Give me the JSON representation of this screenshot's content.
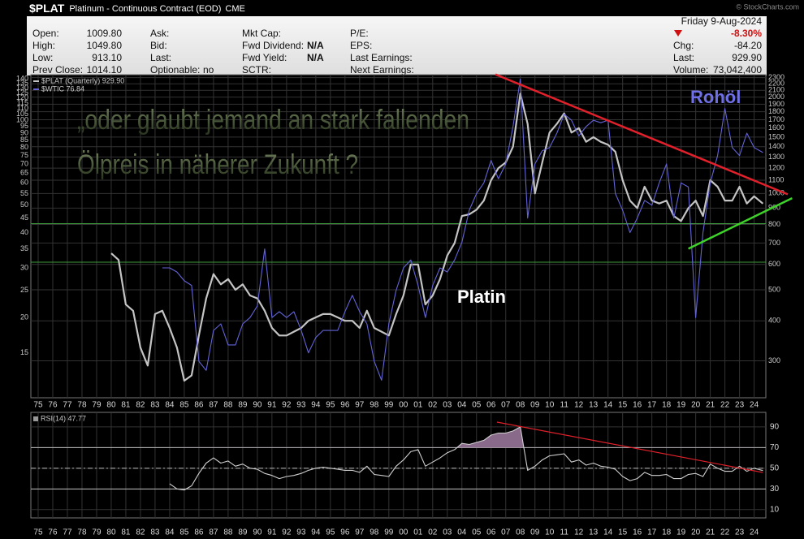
{
  "header": {
    "symbol": "$PLAT",
    "description": "Platinum - Continuous Contract (EOD)",
    "exchange": "CME",
    "watermark": "© StockCharts.com",
    "date": "Friday  9-Aug-2024",
    "change_pct": "-8.30%",
    "columns": [
      [
        {
          "label": "Open:",
          "value": "1009.80"
        },
        {
          "label": "High:",
          "value": "1049.80"
        },
        {
          "label": "Low:",
          "value": "913.10"
        },
        {
          "label": "Prev Close:",
          "value": "1014.10"
        }
      ],
      [
        {
          "label": "Ask:"
        },
        {
          "label": "Bid:"
        },
        {
          "label": "Last:"
        },
        {
          "label": "Optionable:",
          "value": "no"
        }
      ],
      [
        {
          "label": "Mkt Cap:"
        },
        {
          "label": "Fwd Dividend:",
          "value": "N/A"
        },
        {
          "label": "Fwd Yield:",
          "value": "N/A"
        },
        {
          "label": "SCTR:"
        }
      ],
      [
        {
          "label": "P/E:"
        },
        {
          "label": "EPS:"
        },
        {
          "label": "Last Earnings:"
        },
        {
          "label": "Next Earnings:"
        }
      ]
    ],
    "right_fields": [
      {
        "label": "Chg:",
        "value": "-84.20"
      },
      {
        "label": "Last:",
        "value": "929.90"
      },
      {
        "label": "Volume:",
        "value": "73,042,400"
      }
    ]
  },
  "chart_data": [
    {
      "type": "line",
      "log_scale": true,
      "grid": true,
      "annotations": [
        "„oder glaubt jemand an stark fallenden",
        "Ölpreis in näherer Zukunft ?",
        "Platin",
        "Rohöl"
      ],
      "xlim": [
        1974.5,
        2024.8
      ],
      "ylim": [
        230,
        2350
      ],
      "y2lim": [
        10.4,
        145
      ],
      "xticks": [
        {
          "value": 1975,
          "label": "75"
        },
        {
          "value": 1976,
          "label": "76"
        },
        {
          "value": 1977,
          "label": "77"
        },
        {
          "value": 1978,
          "label": "78"
        },
        {
          "value": 1979,
          "label": "79"
        },
        {
          "value": 1980,
          "label": "80"
        },
        {
          "value": 1981,
          "label": "81"
        },
        {
          "value": 1982,
          "label": "82"
        },
        {
          "value": 1983,
          "label": "83"
        },
        {
          "value": 1984,
          "label": "84"
        },
        {
          "value": 1985,
          "label": "85"
        },
        {
          "value": 1986,
          "label": "86"
        },
        {
          "value": 1987,
          "label": "87"
        },
        {
          "value": 1988,
          "label": "88"
        },
        {
          "value": 1989,
          "label": "89"
        },
        {
          "value": 1990,
          "label": "90"
        },
        {
          "value": 1991,
          "label": "91"
        },
        {
          "value": 1992,
          "label": "92"
        },
        {
          "value": 1993,
          "label": "93"
        },
        {
          "value": 1994,
          "label": "94"
        },
        {
          "value": 1995,
          "label": "95"
        },
        {
          "value": 1996,
          "label": "96"
        },
        {
          "value": 1997,
          "label": "97"
        },
        {
          "value": 1998,
          "label": "98"
        },
        {
          "value": 1999,
          "label": "99"
        },
        {
          "value": 2000,
          "label": "00"
        },
        {
          "value": 2001,
          "label": "01"
        },
        {
          "value": 2002,
          "label": "02"
        },
        {
          "value": 2003,
          "label": "03"
        },
        {
          "value": 2004,
          "label": "04"
        },
        {
          "value": 2005,
          "label": "05"
        },
        {
          "value": 2006,
          "label": "06"
        },
        {
          "value": 2007,
          "label": "07"
        },
        {
          "value": 2008,
          "label": "08"
        },
        {
          "value": 2009,
          "label": "09"
        },
        {
          "value": 2010,
          "label": "10"
        },
        {
          "value": 2011,
          "label": "11"
        },
        {
          "value": 2012,
          "label": "12"
        },
        {
          "value": 2013,
          "label": "13"
        },
        {
          "value": 2014,
          "label": "14"
        },
        {
          "value": 2015,
          "label": "15"
        },
        {
          "value": 2016,
          "label": "16"
        },
        {
          "value": 2017,
          "label": "17"
        },
        {
          "value": 2018,
          "label": "18"
        },
        {
          "value": 2019,
          "label": "19"
        },
        {
          "value": 2020,
          "label": "20"
        },
        {
          "value": 2021,
          "label": "21"
        },
        {
          "value": 2022,
          "label": "22"
        },
        {
          "value": 2023,
          "label": "23"
        },
        {
          "value": 2024,
          "label": "24"
        }
      ],
      "yticks": [
        300,
        400,
        500,
        600,
        700,
        800,
        900,
        1000,
        1100,
        1200,
        1300,
        1400,
        1500,
        1600,
        1700,
        1800,
        1900,
        2000,
        2100,
        2200,
        2300
      ],
      "y2ticks": [
        15,
        20,
        25,
        30,
        35,
        40,
        45,
        50,
        55,
        60,
        65,
        70,
        75,
        80,
        85,
        90,
        95,
        100,
        105,
        110,
        115,
        120,
        125,
        130,
        135,
        140
      ],
      "levels": [
        805,
        610
      ],
      "level_color": "#3c9a3c",
      "trendlines": [
        {
          "color": "#e0202a",
          "x": [
            2006.3,
            2026.3
          ],
          "values": [
            2354,
            994
          ]
        },
        {
          "color": "#3ed22a",
          "x": [
            2019.5,
            2026.6
          ],
          "values": [
            672,
            967
          ]
        }
      ],
      "series": [
        {
          "name": "$PLAT (Quarterly) 929.90",
          "color": "#c4c4c4",
          "x": [
            1980,
            1980.5,
            1981,
            1981.5,
            1982,
            1982.5,
            1983,
            1983.5,
            1984,
            1984.5,
            1985,
            1985.5,
            1986,
            1986.5,
            1987,
            1987.5,
            1988,
            1988.5,
            1989,
            1989.5,
            1990,
            1990.5,
            1991,
            1991.5,
            1992,
            1992.5,
            1993,
            1993.5,
            1994,
            1994.5,
            1995,
            1995.5,
            1996,
            1996.5,
            1997,
            1997.5,
            1998,
            1998.5,
            1999,
            1999.5,
            2000,
            2000.5,
            2001,
            2001.5,
            2002,
            2002.5,
            2003,
            2003.5,
            2004,
            2004.5,
            2005,
            2005.5,
            2006,
            2006.5,
            2007,
            2007.5,
            2008,
            2008.5,
            2009,
            2009.5,
            2010,
            2010.5,
            2011,
            2011.5,
            2012,
            2012.5,
            2013,
            2013.5,
            2014,
            2014.5,
            2015,
            2015.5,
            2016,
            2016.5,
            2017,
            2017.5,
            2018,
            2018.5,
            2019,
            2019.5,
            2020,
            2020.5,
            2021,
            2021.5,
            2022,
            2022.5,
            2023,
            2023.5,
            2024,
            2024.6
          ],
          "values": [
            650,
            620,
            450,
            430,
            330,
            290,
            420,
            430,
            380,
            330,
            260,
            270,
            360,
            470,
            560,
            520,
            540,
            500,
            520,
            480,
            470,
            430,
            380,
            360,
            360,
            370,
            380,
            400,
            410,
            420,
            420,
            410,
            400,
            400,
            380,
            430,
            380,
            370,
            360,
            420,
            480,
            600,
            600,
            450,
            480,
            540,
            640,
            700,
            850,
            860,
            890,
            950,
            1100,
            1200,
            1250,
            1400,
            2050,
            1650,
            1000,
            1250,
            1550,
            1650,
            1780,
            1550,
            1600,
            1450,
            1500,
            1450,
            1420,
            1350,
            1100,
            950,
            900,
            1050,
            950,
            930,
            950,
            850,
            820,
            900,
            950,
            850,
            1100,
            1050,
            950,
            950,
            1050,
            930,
            980,
            929.9
          ]
        },
        {
          "name": "$WTIC 76.84",
          "color": "#6464d8",
          "axis": "y2",
          "x": [
            1983.5,
            1984,
            1984.5,
            1985,
            1985.5,
            1986,
            1986.5,
            1987,
            1987.5,
            1988,
            1988.5,
            1989,
            1989.5,
            1990,
            1990.5,
            1991,
            1991.5,
            1992,
            1992.5,
            1993,
            1993.5,
            1994,
            1994.5,
            1995,
            1995.5,
            1996,
            1996.5,
            1997,
            1997.5,
            1998,
            1998.5,
            1999,
            1999.5,
            2000,
            2000.5,
            2001,
            2001.5,
            2002,
            2002.5,
            2003,
            2003.5,
            2004,
            2004.5,
            2005,
            2005.5,
            2006,
            2006.5,
            2007,
            2007.5,
            2008,
            2008.5,
            2009,
            2009.5,
            2010,
            2010.5,
            2011,
            2011.5,
            2012,
            2012.5,
            2013,
            2013.5,
            2014,
            2014.5,
            2015,
            2015.5,
            2016,
            2016.5,
            2017,
            2017.5,
            2018,
            2018.5,
            2019,
            2019.5,
            2020,
            2020.5,
            2021,
            2021.5,
            2022,
            2022.5,
            2023,
            2023.5,
            2024,
            2024.6
          ],
          "values": [
            30,
            30,
            29,
            27,
            26,
            14,
            13,
            18,
            19,
            16,
            16,
            19,
            20,
            22,
            35,
            20,
            21,
            20,
            21,
            18,
            15,
            17,
            18,
            18,
            18,
            21,
            24,
            21,
            19,
            14,
            12,
            19,
            25,
            30,
            32,
            26,
            20,
            26,
            30,
            29,
            32,
            37,
            48,
            55,
            60,
            72,
            62,
            70,
            95,
            140,
            45,
            70,
            78,
            80,
            90,
            105,
            100,
            88,
            95,
            100,
            98,
            100,
            55,
            48,
            40,
            45,
            52,
            50,
            60,
            70,
            45,
            60,
            58,
            20,
            40,
            60,
            75,
            110,
            80,
            75,
            90,
            80,
            76.84
          ]
        }
      ]
    },
    {
      "type": "line",
      "title": "RSI(14) 47.77",
      "grid": true,
      "xlim": [
        1974.5,
        2024.8
      ],
      "ylim": [
        2,
        104
      ],
      "yticks": [
        10,
        30,
        50,
        70,
        90
      ],
      "levels": [
        30,
        50,
        70
      ],
      "fill_above": 70,
      "fill_color": "#8a6a8a",
      "trendlines": [
        {
          "color": "#e0202a",
          "x": [
            2006.4,
            2024.6
          ],
          "values": [
            94.6,
            45.9
          ]
        }
      ],
      "series": [
        {
          "color": "#cfcfcf",
          "x": [
            1984,
            1984.5,
            1985,
            1985.5,
            1986,
            1986.5,
            1987,
            1987.5,
            1988,
            1988.5,
            1989,
            1989.5,
            1990,
            1990.5,
            1991,
            1991.5,
            1992,
            1992.5,
            1993,
            1993.5,
            1994,
            1994.5,
            1995,
            1995.5,
            1996,
            1996.5,
            1997,
            1997.5,
            1998,
            1998.5,
            1999,
            1999.5,
            2000,
            2000.5,
            2001,
            2001.5,
            2002,
            2002.5,
            2003,
            2003.5,
            2004,
            2004.5,
            2005,
            2005.5,
            2006,
            2006.5,
            2007,
            2007.5,
            2008,
            2008.5,
            2009,
            2009.5,
            2010,
            2010.5,
            2011,
            2011.5,
            2012,
            2012.5,
            2013,
            2013.5,
            2014,
            2014.5,
            2015,
            2015.5,
            2016,
            2016.5,
            2017,
            2017.5,
            2018,
            2018.5,
            2019,
            2019.5,
            2020,
            2020.5,
            2021,
            2021.5,
            2022,
            2022.5,
            2023,
            2023.5,
            2024,
            2024.6
          ],
          "values": [
            35,
            30,
            29,
            33,
            45,
            55,
            60,
            55,
            57,
            52,
            54,
            50,
            49,
            45,
            43,
            40,
            42,
            43,
            45,
            48,
            50,
            51,
            50,
            49,
            48,
            48,
            46,
            52,
            44,
            43,
            42,
            52,
            58,
            66,
            68,
            52,
            56,
            60,
            65,
            68,
            74,
            73,
            75,
            77,
            82,
            84,
            84,
            86,
            90,
            48,
            52,
            58,
            62,
            63,
            64,
            56,
            58,
            53,
            55,
            52,
            51,
            49,
            42,
            38,
            40,
            46,
            43,
            43,
            44,
            40,
            40,
            44,
            45,
            42,
            54,
            50,
            47,
            47,
            52,
            47,
            50,
            47.77
          ]
        }
      ]
    }
  ]
}
